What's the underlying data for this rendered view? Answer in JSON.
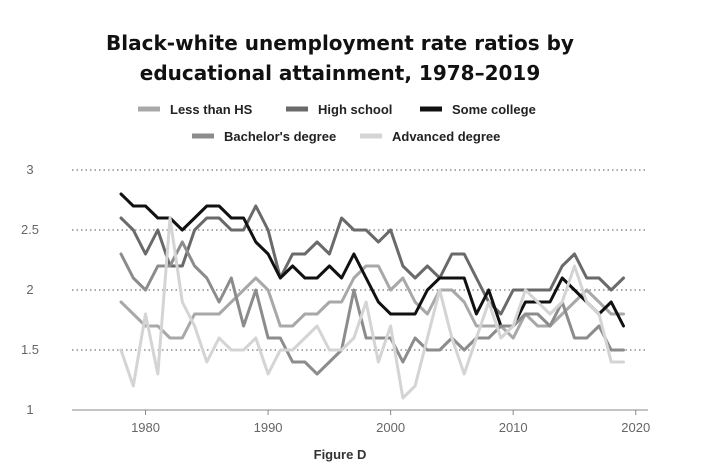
{
  "caption": "Figure D",
  "chart_data": {
    "type": "line",
    "title": [
      "Black-white unemployment rate ratios by",
      "educational attainment, 1978–2019"
    ],
    "xlabel": "",
    "ylabel": "",
    "xlim": [
      1974,
      2021
    ],
    "ylim": [
      1,
      3
    ],
    "xticks": [
      1980,
      1990,
      2000,
      2010,
      2020
    ],
    "yticks": [
      1,
      1.5,
      2,
      2.5,
      3
    ],
    "xtick_labels": [
      "1980",
      "1990",
      "2000",
      "2010",
      "2020"
    ],
    "ytick_labels": [
      "1",
      "1.5",
      "2",
      "2.5",
      "3"
    ],
    "grid": "horizontal dotted",
    "legend_position": "top",
    "x": [
      1978,
      1979,
      1980,
      1981,
      1982,
      1983,
      1984,
      1985,
      1986,
      1987,
      1988,
      1989,
      1990,
      1991,
      1992,
      1993,
      1994,
      1995,
      1996,
      1997,
      1998,
      1999,
      2000,
      2001,
      2002,
      2003,
      2004,
      2005,
      2006,
      2007,
      2008,
      2009,
      2010,
      2011,
      2012,
      2013,
      2014,
      2015,
      2016,
      2017,
      2018,
      2019
    ],
    "series": [
      {
        "name": "Less than HS",
        "color": "#a8a8a8",
        "values": [
          1.9,
          1.8,
          1.7,
          1.7,
          1.6,
          1.6,
          1.8,
          1.8,
          1.8,
          1.9,
          2.0,
          2.1,
          2.0,
          1.7,
          1.7,
          1.8,
          1.8,
          1.9,
          1.9,
          2.1,
          2.2,
          2.2,
          2.0,
          2.1,
          1.9,
          1.8,
          2.0,
          2.0,
          1.9,
          1.7,
          1.7,
          1.7,
          1.6,
          1.8,
          1.7,
          1.7,
          1.8,
          1.9,
          2.0,
          1.9,
          1.8,
          1.8
        ]
      },
      {
        "name": "High school",
        "color": "#6a6a6a",
        "values": [
          2.6,
          2.5,
          2.3,
          2.5,
          2.2,
          2.2,
          2.5,
          2.6,
          2.6,
          2.5,
          2.5,
          2.7,
          2.5,
          2.1,
          2.3,
          2.3,
          2.4,
          2.3,
          2.6,
          2.5,
          2.5,
          2.4,
          2.5,
          2.2,
          2.1,
          2.2,
          2.1,
          2.3,
          2.3,
          2.1,
          1.9,
          1.8,
          2.0,
          2.0,
          2.0,
          2.0,
          2.2,
          2.3,
          2.1,
          2.1,
          2.0,
          2.1
        ]
      },
      {
        "name": "Some college",
        "color": "#111111",
        "values": [
          2.8,
          2.7,
          2.7,
          2.6,
          2.6,
          2.5,
          2.6,
          2.7,
          2.7,
          2.6,
          2.6,
          2.4,
          2.3,
          2.1,
          2.2,
          2.1,
          2.1,
          2.2,
          2.1,
          2.3,
          2.1,
          1.9,
          1.8,
          1.8,
          1.8,
          2.0,
          2.1,
          2.1,
          2.1,
          1.8,
          2.0,
          1.7,
          1.7,
          1.9,
          1.9,
          1.9,
          2.1,
          2.0,
          1.9,
          1.8,
          1.9,
          1.7
        ]
      },
      {
        "name": "Bachelor's degree",
        "color": "#8c8c8c",
        "values": [
          2.3,
          2.1,
          2.0,
          2.2,
          2.2,
          2.4,
          2.2,
          2.1,
          1.9,
          2.1,
          1.7,
          2.0,
          1.6,
          1.6,
          1.4,
          1.4,
          1.3,
          1.4,
          1.5,
          2.0,
          1.6,
          1.6,
          1.6,
          1.4,
          1.6,
          1.5,
          1.5,
          1.6,
          1.5,
          1.6,
          1.6,
          1.7,
          1.7,
          1.8,
          1.8,
          1.7,
          1.9,
          1.6,
          1.6,
          1.7,
          1.5,
          1.5
        ]
      },
      {
        "name": "Advanced degree",
        "color": "#d4d4d4",
        "values": [
          1.5,
          1.2,
          1.8,
          1.3,
          2.6,
          1.9,
          1.7,
          1.4,
          1.6,
          1.5,
          1.5,
          1.6,
          1.3,
          1.5,
          1.5,
          1.6,
          1.7,
          1.5,
          1.5,
          1.6,
          1.9,
          1.4,
          1.7,
          1.1,
          1.2,
          1.6,
          2.0,
          1.6,
          1.3,
          1.6,
          1.9,
          1.6,
          1.7,
          2.0,
          1.9,
          1.8,
          1.9,
          2.2,
          1.9,
          1.8,
          1.4,
          1.4
        ]
      }
    ]
  }
}
